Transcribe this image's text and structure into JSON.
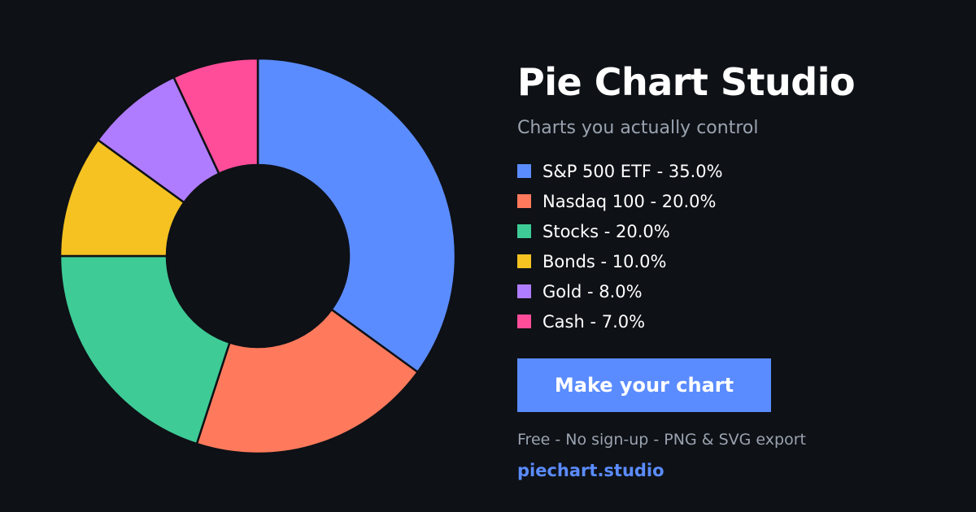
{
  "header": {
    "title": "Pie Chart Studio",
    "subtitle": "Charts you actually control"
  },
  "legend": [
    {
      "label": "S&P 500 ETF - 35.0%",
      "color": "#5b8cff"
    },
    {
      "label": "Nasdaq 100 - 20.0%",
      "color": "#ff7a5c"
    },
    {
      "label": "Stocks - 20.0%",
      "color": "#3ecb96"
    },
    {
      "label": "Bonds - 10.0%",
      "color": "#f5c222"
    },
    {
      "label": "Gold - 8.0%",
      "color": "#b07cff"
    },
    {
      "label": "Cash - 7.0%",
      "color": "#ff4d9a"
    }
  ],
  "cta": {
    "label": "Make your chart",
    "color": "#5b8cff"
  },
  "footer": {
    "tagline": "Free - No sign-up - PNG & SVG export",
    "site": "piechart.studio"
  },
  "colors": {
    "background": "#0e1116",
    "muted_text": "#9aa3af",
    "accent": "#5b8cff"
  },
  "chart_data": {
    "type": "pie",
    "variant": "donut",
    "categories": [
      "S&P 500 ETF",
      "Nasdaq 100",
      "Stocks",
      "Bonds",
      "Gold",
      "Cash"
    ],
    "values": [
      35.0,
      20.0,
      20.0,
      10.0,
      8.0,
      7.0
    ],
    "colors": [
      "#5b8cff",
      "#ff7a5c",
      "#3ecb96",
      "#f5c222",
      "#b07cff",
      "#ff4d9a"
    ],
    "start_angle_deg": 0,
    "direction": "clockwise"
  }
}
